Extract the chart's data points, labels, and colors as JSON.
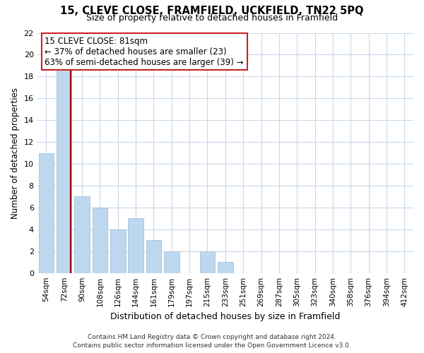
{
  "title": "15, CLEVE CLOSE, FRAMFIELD, UCKFIELD, TN22 5PQ",
  "subtitle": "Size of property relative to detached houses in Framfield",
  "xlabel": "Distribution of detached houses by size in Framfield",
  "ylabel": "Number of detached properties",
  "bar_labels": [
    "54sqm",
    "72sqm",
    "90sqm",
    "108sqm",
    "126sqm",
    "144sqm",
    "161sqm",
    "179sqm",
    "197sqm",
    "215sqm",
    "233sqm",
    "251sqm",
    "269sqm",
    "287sqm",
    "305sqm",
    "323sqm",
    "340sqm",
    "358sqm",
    "376sqm",
    "394sqm",
    "412sqm"
  ],
  "bar_values": [
    11,
    19,
    7,
    6,
    4,
    5,
    3,
    2,
    0,
    2,
    1,
    0,
    0,
    0,
    0,
    0,
    0,
    0,
    0,
    0,
    0
  ],
  "bar_color": "#bdd7ee",
  "bar_edge_color": "#9bbcd6",
  "highlight_bar_index": 1,
  "highlight_line_color": "#8b0000",
  "annotation_title": "15 CLEVE CLOSE: 81sqm",
  "annotation_line1": "← 37% of detached houses are smaller (23)",
  "annotation_line2": "63% of semi-detached houses are larger (39) →",
  "annotation_box_color": "#cc2222",
  "ylim": [
    0,
    22
  ],
  "yticks": [
    0,
    2,
    4,
    6,
    8,
    10,
    12,
    14,
    16,
    18,
    20,
    22
  ],
  "footer_line1": "Contains HM Land Registry data © Crown copyright and database right 2024.",
  "footer_line2": "Contains public sector information licensed under the Open Government Licence v3.0.",
  "background_color": "#ffffff",
  "grid_color": "#c8d8ea"
}
